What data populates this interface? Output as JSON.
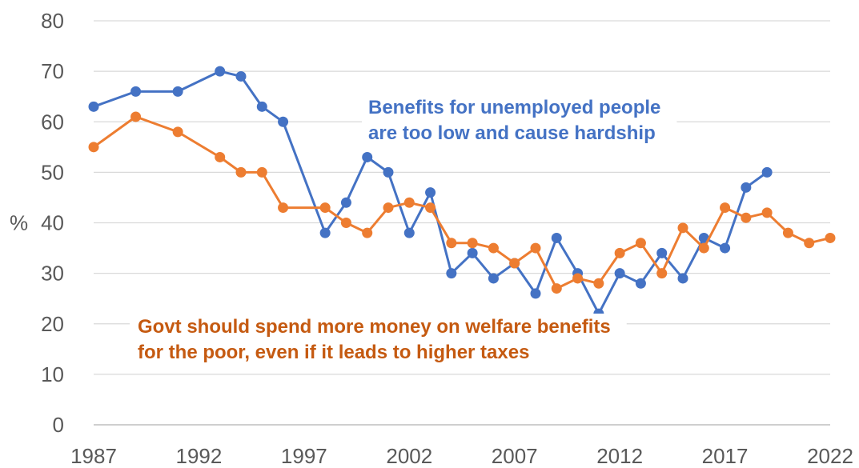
{
  "chart_data": {
    "type": "line",
    "ylabel": "%",
    "ylim": [
      0,
      80
    ],
    "yticks": [
      0,
      10,
      20,
      30,
      40,
      50,
      60,
      70,
      80
    ],
    "xlim": [
      1987,
      2022
    ],
    "xticks": [
      1987,
      1992,
      1997,
      2002,
      2007,
      2012,
      2017,
      2022
    ],
    "grid": "horizontal",
    "legend": "none",
    "series": [
      {
        "name": "Benefits for unemployed people are too low and cause hardship",
        "color": "#4472C4",
        "points": [
          [
            1987,
            63
          ],
          [
            1989,
            66
          ],
          [
            1991,
            66
          ],
          [
            1993,
            70
          ],
          [
            1994,
            69
          ],
          [
            1995,
            63
          ],
          [
            1996,
            60
          ],
          [
            1998,
            38
          ],
          [
            1999,
            44
          ],
          [
            2000,
            53
          ],
          [
            2001,
            50
          ],
          [
            2002,
            38
          ],
          [
            2003,
            46
          ],
          [
            2004,
            30
          ],
          [
            2005,
            34
          ],
          [
            2006,
            29
          ],
          [
            2007,
            32
          ],
          [
            2008,
            26
          ],
          [
            2009,
            37
          ],
          [
            2010,
            30
          ],
          [
            2011,
            22
          ],
          [
            2012,
            30
          ],
          [
            2013,
            28
          ],
          [
            2014,
            34
          ],
          [
            2015,
            29
          ],
          [
            2016,
            37
          ],
          [
            2017,
            35
          ],
          [
            2018,
            47
          ],
          [
            2019,
            50
          ]
        ]
      },
      {
        "name": "Govt should spend more money on welfare benefits for the poor, even if it leads to higher taxes",
        "color": "#ED7D31",
        "points": [
          [
            1987,
            55
          ],
          [
            1989,
            61
          ],
          [
            1991,
            58
          ],
          [
            1993,
            53
          ],
          [
            1994,
            50
          ],
          [
            1995,
            50
          ],
          [
            1996,
            43
          ],
          [
            1998,
            43
          ],
          [
            1999,
            40
          ],
          [
            2000,
            38
          ],
          [
            2001,
            43
          ],
          [
            2002,
            44
          ],
          [
            2003,
            43
          ],
          [
            2004,
            36
          ],
          [
            2005,
            36
          ],
          [
            2006,
            35
          ],
          [
            2007,
            32
          ],
          [
            2008,
            35
          ],
          [
            2009,
            27
          ],
          [
            2010,
            29
          ],
          [
            2011,
            28
          ],
          [
            2012,
            34
          ],
          [
            2013,
            36
          ],
          [
            2014,
            30
          ],
          [
            2015,
            39
          ],
          [
            2016,
            35
          ],
          [
            2017,
            43
          ],
          [
            2018,
            41
          ],
          [
            2019,
            42
          ],
          [
            2020,
            38
          ],
          [
            2021,
            36
          ],
          [
            2022,
            37
          ]
        ]
      }
    ],
    "annotations": [
      {
        "series": 0,
        "color": "#4472C4",
        "lines": [
          "Benefits for unemployed people",
          "are too low and cause hardship"
        ]
      },
      {
        "series": 1,
        "color": "#C55A11",
        "lines": [
          "Govt should spend more money  on welfare benefits",
          "for the poor, even if it leads to higher taxes"
        ]
      }
    ]
  }
}
